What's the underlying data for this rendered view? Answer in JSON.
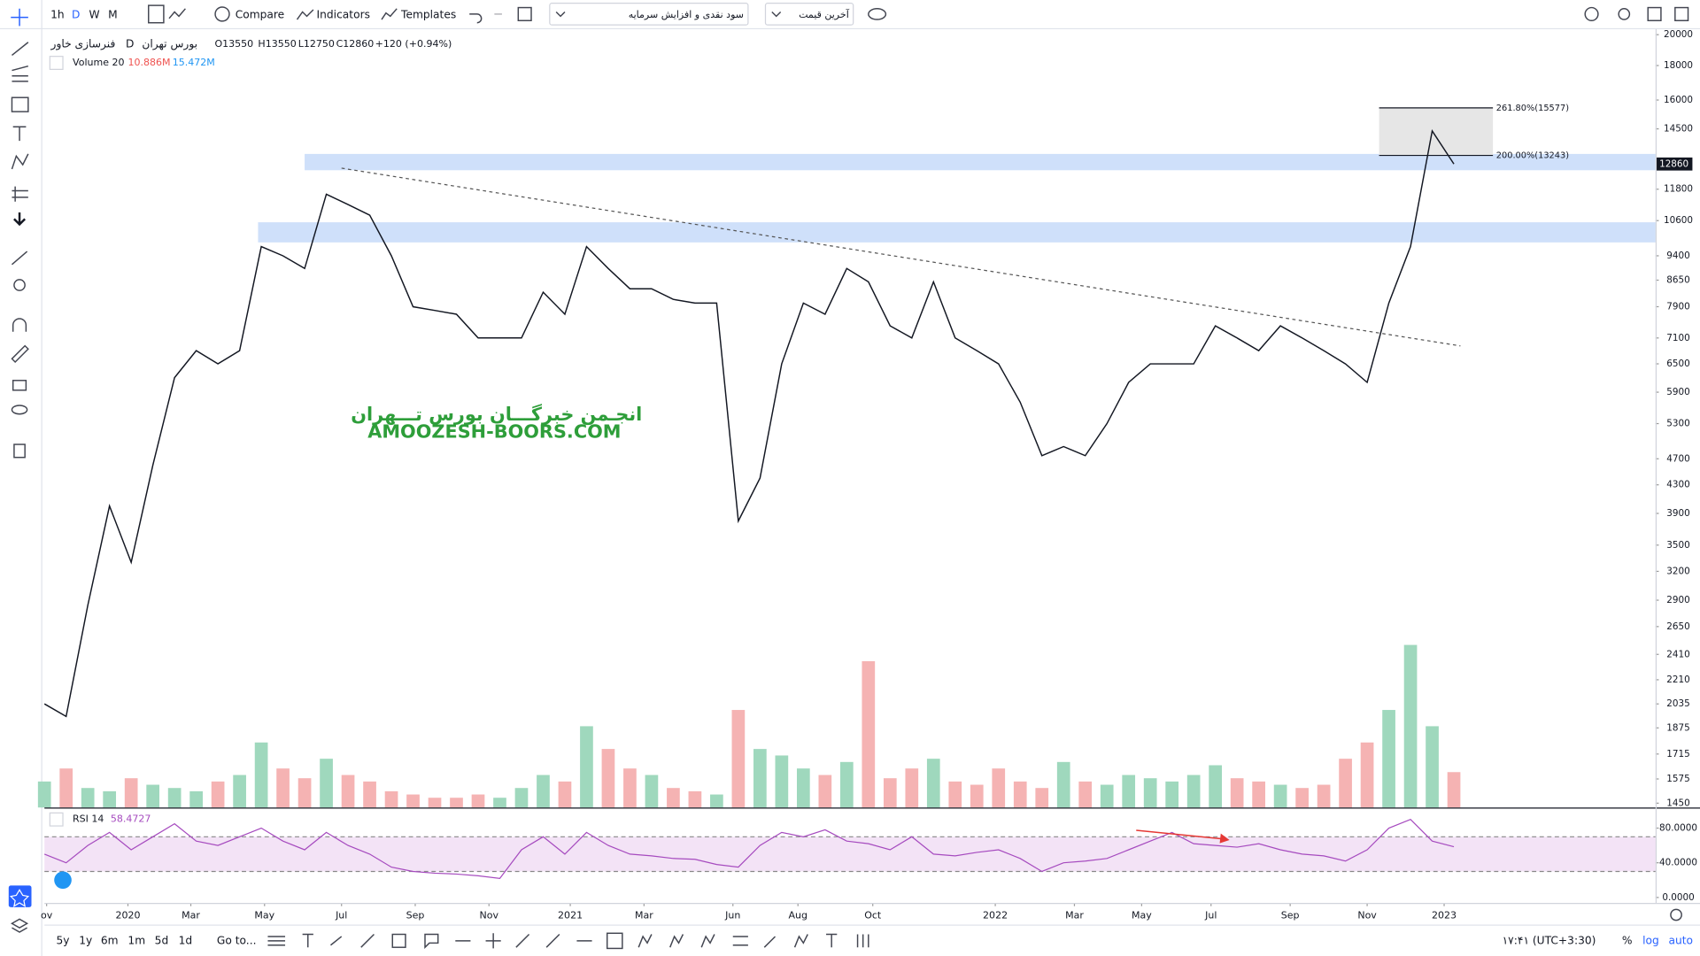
{
  "toolbar": {
    "intervals": [
      "1h",
      "D",
      "W",
      "M"
    ],
    "compare": "Compare",
    "indicators": "Indicators",
    "templates": "Templates",
    "event_menu": "سود نقدی و افزایش سرمایه",
    "price_menu": "آخرین قیمت"
  },
  "legend": {
    "symbol": "فنرسازی خاور",
    "exchange": "بورس تهران",
    "interval": "D",
    "open": "O13550",
    "high": "H13550",
    "low": "L12750",
    "close": "C12860",
    "change": "+120 (+0.94%)",
    "volume_name": "Volume 20",
    "volume_value": "10.886M",
    "volume_ma": "15.472M"
  },
  "watermark": {
    "line1": "انجـمن خبرگـــان بورس تـــهران",
    "line2": "AMOOZESH-BOORS.COM"
  },
  "chart_data": {
    "type": "line",
    "log_scale": true,
    "color": "#131722",
    "values": [
      2035,
      1950,
      2850,
      4000,
      3300,
      4600,
      6200,
      6800,
      6500,
      6800,
      9700,
      9400,
      9000,
      11600,
      11200,
      10800,
      9400,
      7900,
      7800,
      7700,
      7100,
      7100,
      7100,
      8300,
      7700,
      9700,
      9000,
      8400,
      8400,
      8100,
      8000,
      8000,
      3800,
      4400,
      6500,
      8000,
      7700,
      9000,
      8600,
      7400,
      7100,
      8600,
      7100,
      6800,
      6500,
      5700,
      4750,
      4900,
      4750,
      5300,
      6100,
      6500,
      6500,
      6500,
      7400,
      7100,
      6800,
      7400,
      7100,
      6800,
      6500,
      6100,
      8000,
      9700,
      14400,
      12860
    ],
    "xlim": [
      0,
      74.3
    ],
    "xticks": [
      {
        "value": 0.1,
        "label": "ov"
      },
      {
        "value": 3.85,
        "label": "2020"
      },
      {
        "value": 6.75,
        "label": "Mar"
      },
      {
        "value": 10.15,
        "label": "May"
      },
      {
        "value": 13.7,
        "label": "Jul"
      },
      {
        "value": 17.1,
        "label": "Sep"
      },
      {
        "value": 20.5,
        "label": "Nov"
      },
      {
        "value": 24.25,
        "label": "2021"
      },
      {
        "value": 27.65,
        "label": "Mar"
      },
      {
        "value": 31.75,
        "label": "Jun"
      },
      {
        "value": 34.75,
        "label": "Aug"
      },
      {
        "value": 38.2,
        "label": "Oct"
      },
      {
        "value": 43.85,
        "label": "2022"
      },
      {
        "value": 47.5,
        "label": "Mar"
      },
      {
        "value": 50.6,
        "label": "May"
      },
      {
        "value": 53.8,
        "label": "Jul"
      },
      {
        "value": 57.45,
        "label": "Sep"
      },
      {
        "value": 61,
        "label": "Nov"
      },
      {
        "value": 64.55,
        "label": "2023"
      }
    ],
    "ylim": [
      1450,
      20000
    ],
    "yticks": [
      1450,
      1575,
      1715,
      1875,
      2035,
      2210,
      2410,
      2650,
      2900,
      3200,
      3500,
      3900,
      4300,
      4700,
      5300,
      5900,
      6500,
      7100,
      7900,
      8650,
      9400,
      10600,
      11800,
      14500,
      16000,
      18000,
      20000
    ],
    "zone_color": "#cfe0fa",
    "zones": [
      {
        "top": 13310,
        "bottom": 12590,
        "x_start": 12
      },
      {
        "top": 10540,
        "bottom": 9840,
        "x_start": 9.85
      }
    ],
    "trendline": {
      "x": [
        13.7,
        65.3
      ],
      "values": [
        12680,
        6910
      ]
    },
    "fib": {
      "x": [
        61.55,
        66.8
      ],
      "levels": [
        {
          "value": 15577,
          "label": "261.80%(15577)"
        },
        {
          "value": 13243,
          "label": "200.00%(13243)"
        }
      ]
    },
    "volume": {
      "values": [
        8,
        12,
        6,
        5,
        9,
        7,
        6,
        5,
        8,
        10,
        20,
        12,
        9,
        15,
        10,
        8,
        5,
        4,
        3,
        3,
        4,
        3,
        6,
        10,
        8,
        25,
        18,
        12,
        10,
        6,
        5,
        4,
        30,
        18,
        16,
        12,
        10,
        14,
        45,
        9,
        12,
        15,
        8,
        7,
        12,
        8,
        6,
        14,
        8,
        7,
        10,
        9,
        8,
        10,
        13,
        9,
        8,
        7,
        6,
        7,
        15,
        20,
        30,
        50,
        25,
        10.886
      ],
      "ylim": [
        0,
        60
      ],
      "up_color": "#9fd8bd",
      "down_color": "#f5b3b3"
    },
    "rsi": {
      "name": "RSI 14",
      "color": "#a64bbf",
      "values": [
        50,
        40,
        60,
        75,
        55,
        70,
        85,
        65,
        60,
        70,
        80,
        65,
        55,
        75,
        60,
        50,
        35,
        30,
        28,
        27,
        25,
        22,
        55,
        70,
        50,
        75,
        60,
        50,
        48,
        45,
        44,
        38,
        35,
        60,
        75,
        70,
        78,
        65,
        62,
        55,
        70,
        50,
        48,
        52,
        55,
        45,
        30,
        40,
        42,
        45,
        55,
        65,
        75,
        62,
        60,
        58,
        62,
        55,
        50,
        48,
        42,
        55,
        80,
        90,
        65,
        58.4727
      ],
      "ylim": [
        0,
        100
      ],
      "yticks": [
        {
          "value": 0,
          "label": "0.0000"
        },
        {
          "value": 40,
          "label": "40.0000"
        },
        {
          "value": 80,
          "label": "80.0000"
        }
      ],
      "bands": [
        30,
        70
      ]
    }
  },
  "bottom_bar": {
    "ranges": [
      "5y",
      "1y",
      "6m",
      "1m",
      "5d",
      "1d"
    ],
    "goto": "Go to...",
    "clock": "۱۷:۴۱ (UTC+3:30)",
    "percent": "%",
    "log": "log",
    "auto": "auto"
  }
}
